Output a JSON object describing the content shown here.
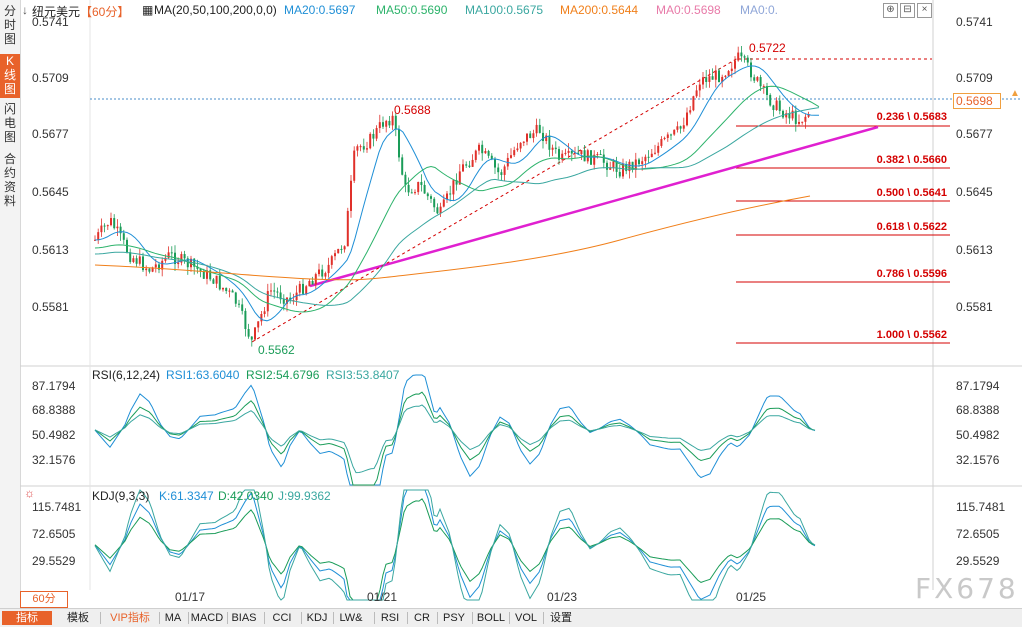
{
  "sidebar": {
    "tabs": [
      {
        "label": "分\n时\n图",
        "active": false
      },
      {
        "label": "K\n线\n图",
        "active": true
      },
      {
        "label": "闪\n电\n图",
        "active": false
      },
      {
        "label": "合\n约\n资\n料",
        "active": false
      }
    ]
  },
  "header": {
    "symbol": "纽元美元",
    "period": "【60分】",
    "ma_label": "MA(20,50,100,200,0,0)",
    "ma20": "MA20:0.5697",
    "ma50": "MA50:0.5690",
    "ma100": "MA100:0.5675",
    "ma200": "MA200:0.5644",
    "ma0a": "MA0:0.5698",
    "ma0b": "MA0:0."
  },
  "price_axis": {
    "left": [
      "0.5741",
      "0.5709",
      "0.5677",
      "0.5645",
      "0.5613",
      "0.5581"
    ],
    "right": [
      "0.5741",
      "0.5709",
      "0.5677",
      "0.5645",
      "0.5613",
      "0.5581"
    ],
    "current_price": "0.5698"
  },
  "annotations": {
    "high": "0.5722",
    "mid_high": "0.5688",
    "low": "0.5562"
  },
  "fibonacci": [
    {
      "label": "0.236 \\ 0.5683"
    },
    {
      "label": "0.382 \\ 0.5660"
    },
    {
      "label": "0.500 \\ 0.5641"
    },
    {
      "label": "0.618 \\ 0.5622"
    },
    {
      "label": "0.786 \\ 0.5596"
    },
    {
      "label": "1.000 \\ 0.5562"
    }
  ],
  "rsi": {
    "title": "RSI(6,12,24)",
    "rsi1": "RSI1:63.6040",
    "rsi2": "RSI2:54.6796",
    "rsi3": "RSI3:53.8407",
    "axis": [
      "87.1794",
      "68.8388",
      "50.4982",
      "32.1576"
    ]
  },
  "kdj": {
    "title": "KDJ(9,3,3)",
    "k": "K:61.3347",
    "d": "D:42.0340",
    "j": "J:99.9362",
    "axis": [
      "115.7481",
      "72.6505",
      "29.5529"
    ]
  },
  "dates": [
    "01/17",
    "01/21",
    "01/23",
    "01/25"
  ],
  "period_button": "60分",
  "bottom_bar": [
    "指标",
    "模板",
    "VIP指标",
    "MA",
    "MACD",
    "BIAS",
    "CCI",
    "KDJ",
    "LW&",
    "RSI",
    "CR",
    "PSY",
    "BOLL",
    "VOL",
    "设置"
  ],
  "watermark": "FX678",
  "colors": {
    "up": "#e0302a",
    "down": "#1a9c58",
    "ma20": "#1f8fd6",
    "ma50": "#2db36b",
    "ma100": "#3aa7a0",
    "ma200": "#f07f1a",
    "trendline": "#e020d0",
    "fib": "#d40000",
    "accent": "#e8622a"
  }
}
